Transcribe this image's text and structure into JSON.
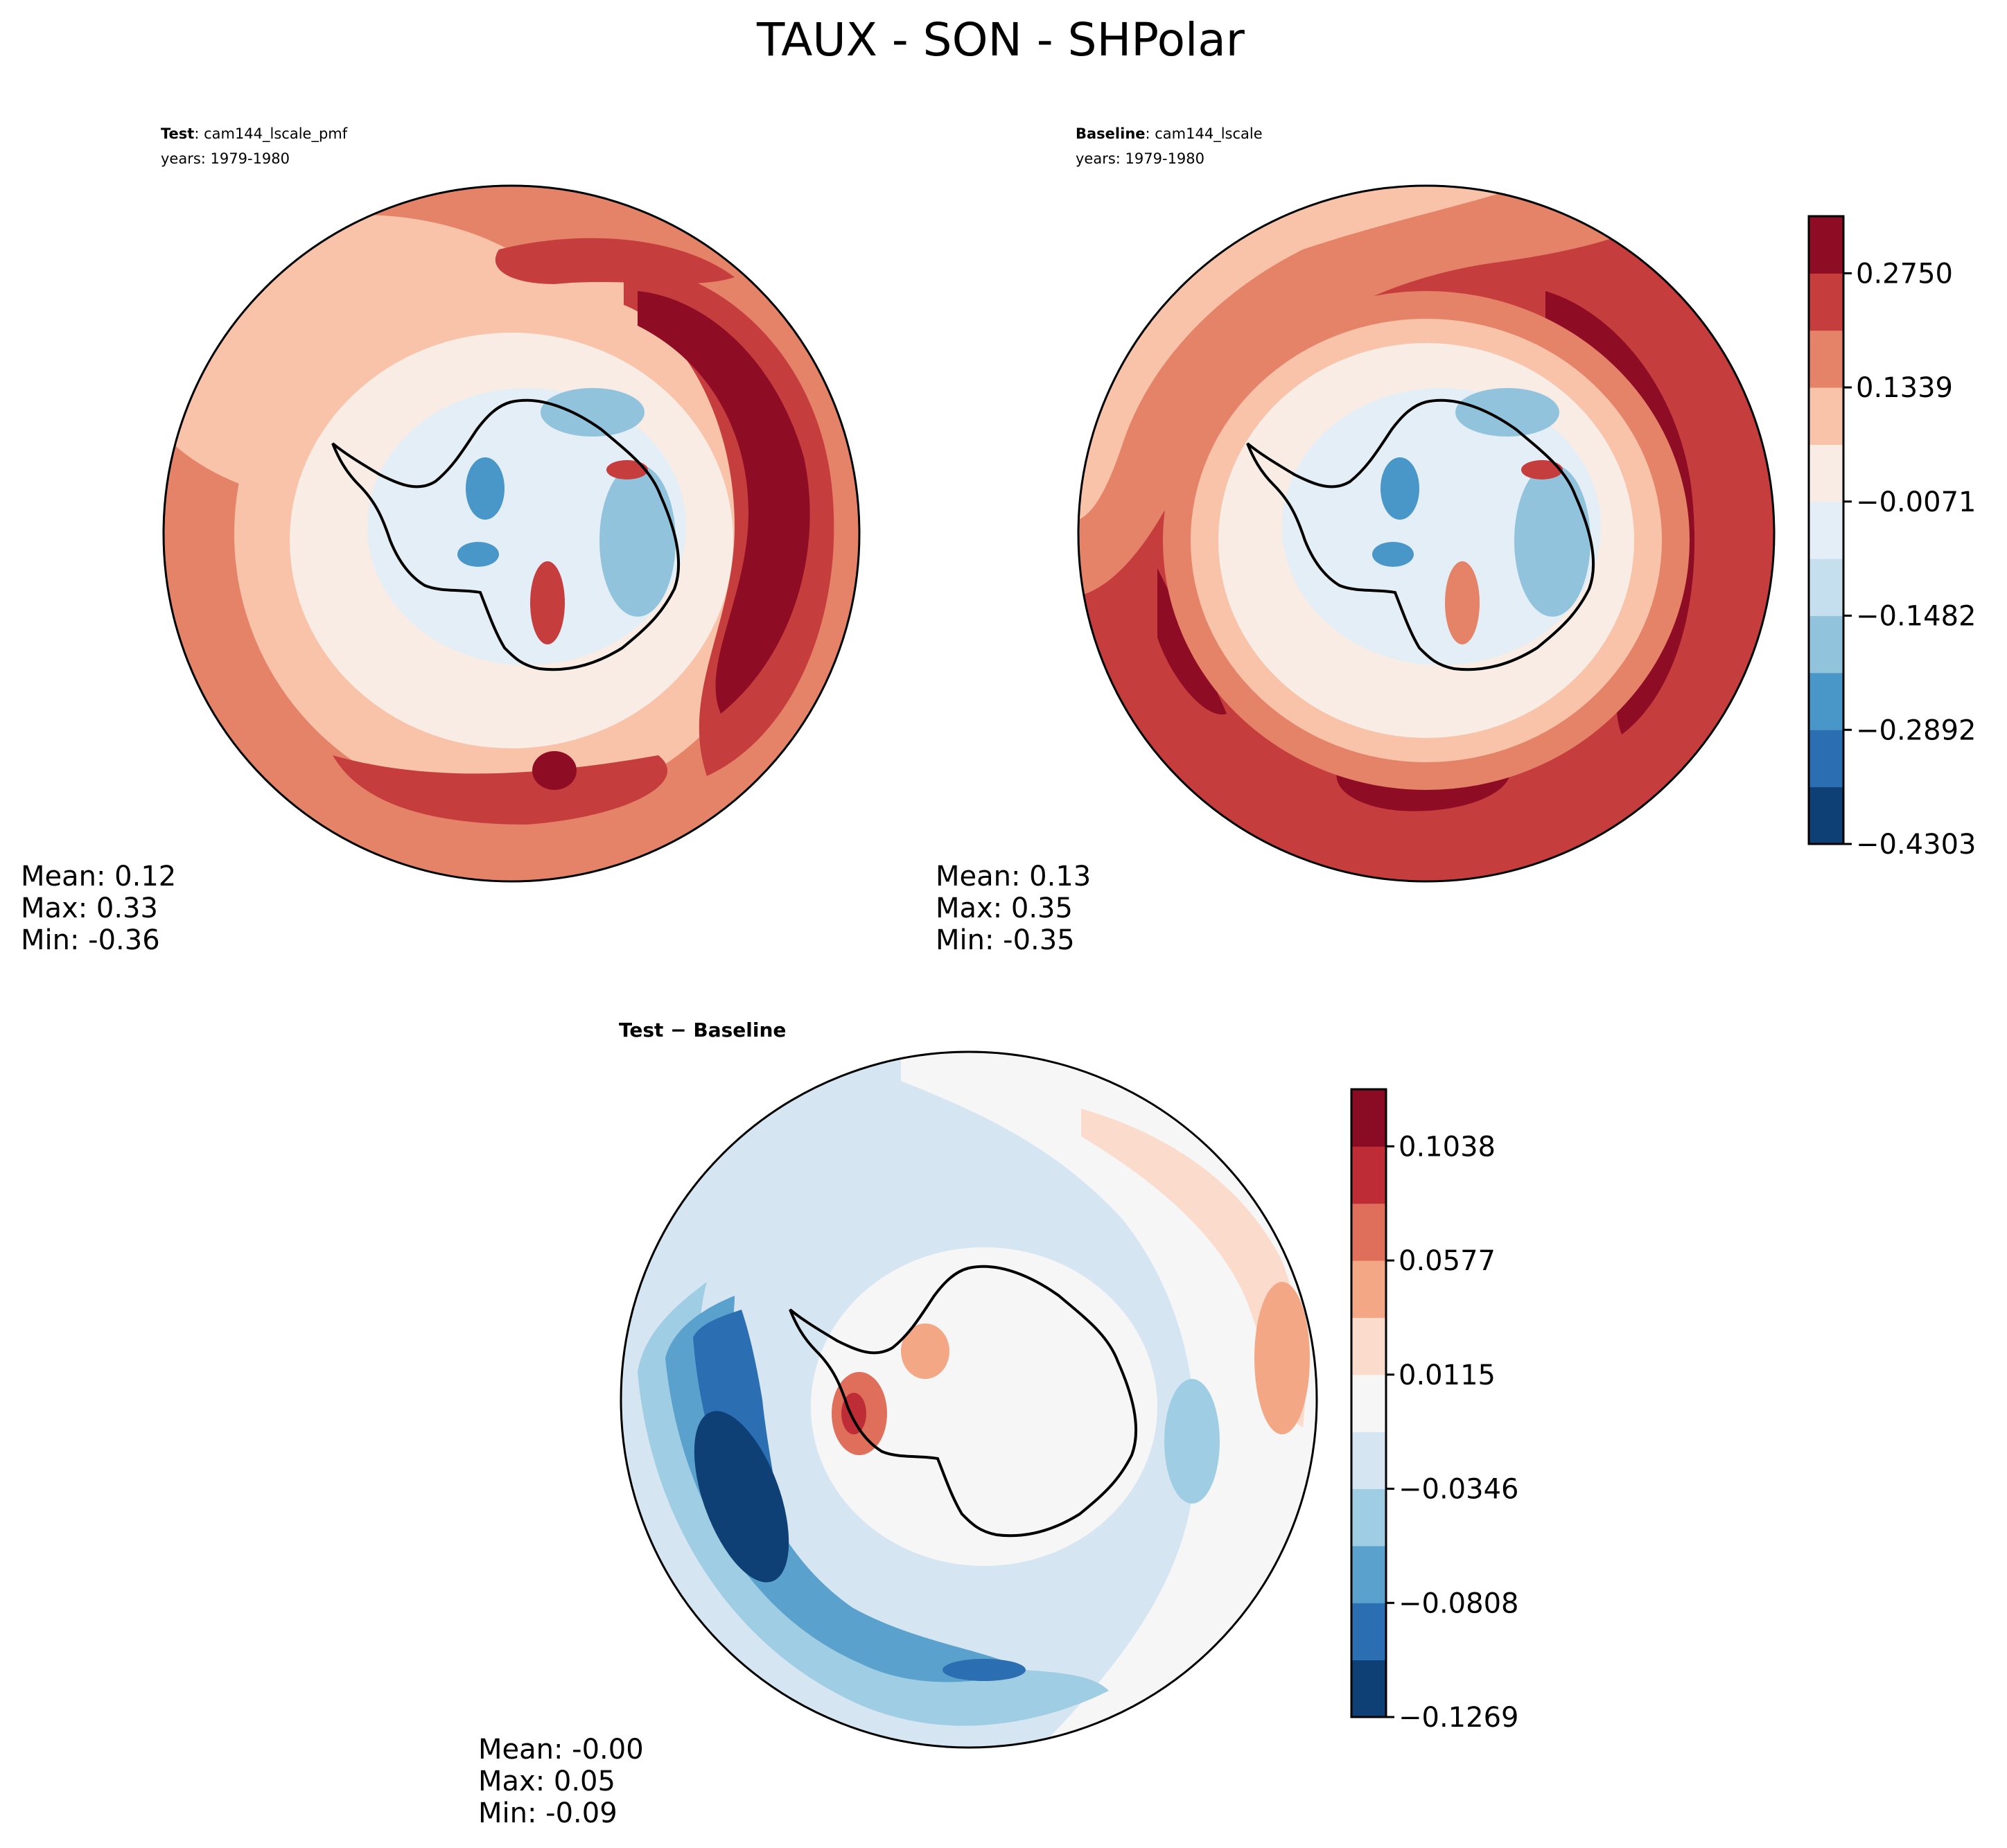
{
  "title": "TAUX - SON - SHPolar",
  "colors": {
    "main_levels": [
      "#0e3f75",
      "#2b6eb1",
      "#4996c8",
      "#92c3dd",
      "#c6dfee",
      "#e4eef6",
      "#f8ece4",
      "#f8c3a9",
      "#e58369",
      "#c63d3e",
      "#8f0d24"
    ],
    "diff_levels": [
      "#0e3f75",
      "#2b6eb1",
      "#5aa2cd",
      "#9fcde3",
      "#d5e6f2",
      "#f6f6f6",
      "#fbdbcb",
      "#f4a785",
      "#df6f5a",
      "#be2c36",
      "#8a0c24"
    ]
  },
  "panels": {
    "test": {
      "label": "Test",
      "case": ": cam144_lscale_pmf",
      "years": "years: 1979-1980",
      "mean": "Mean:  0.12",
      "max": "Max:  0.33",
      "min": "Min: -0.36"
    },
    "baseline": {
      "label": "Baseline",
      "case": ": cam144_lscale",
      "years": "years: 1979-1980",
      "mean": "Mean:  0.13",
      "max": "Max:  0.35",
      "min": "Min: -0.35"
    },
    "diff": {
      "title": "Test − Baseline",
      "mean": "Mean: -0.00",
      "max": "Max:  0.05",
      "min": "Min: -0.09"
    }
  },
  "chart_data": [
    {
      "type": "heatmap",
      "projection": "South polar stereographic",
      "panel": "Test",
      "colorbar_ticks": [
        "0.2750",
        "0.1339",
        "−0.0071",
        "−0.1482",
        "−0.2892",
        "−0.4303"
      ],
      "colorbar_range": [
        -0.4303,
        0.345
      ],
      "levels": 11,
      "stats": {
        "mean": 0.12,
        "max": 0.33,
        "min": -0.36
      }
    },
    {
      "type": "heatmap",
      "projection": "South polar stereographic",
      "panel": "Baseline",
      "colorbar_ticks": [
        "0.2750",
        "0.1339",
        "−0.0071",
        "−0.1482",
        "−0.2892",
        "−0.4303"
      ],
      "colorbar_range": [
        -0.4303,
        0.345
      ],
      "levels": 11,
      "stats": {
        "mean": 0.13,
        "max": 0.35,
        "min": -0.35
      }
    },
    {
      "type": "heatmap",
      "projection": "South polar stereographic",
      "panel": "Test − Baseline",
      "colorbar_ticks": [
        "0.1038",
        "0.0577",
        "0.0115",
        "−0.0346",
        "−0.0808",
        "−0.1269"
      ],
      "colorbar_range": [
        -0.1269,
        0.127
      ],
      "levels": 11,
      "stats": {
        "mean": -0.0,
        "max": 0.05,
        "min": -0.09
      }
    }
  ]
}
